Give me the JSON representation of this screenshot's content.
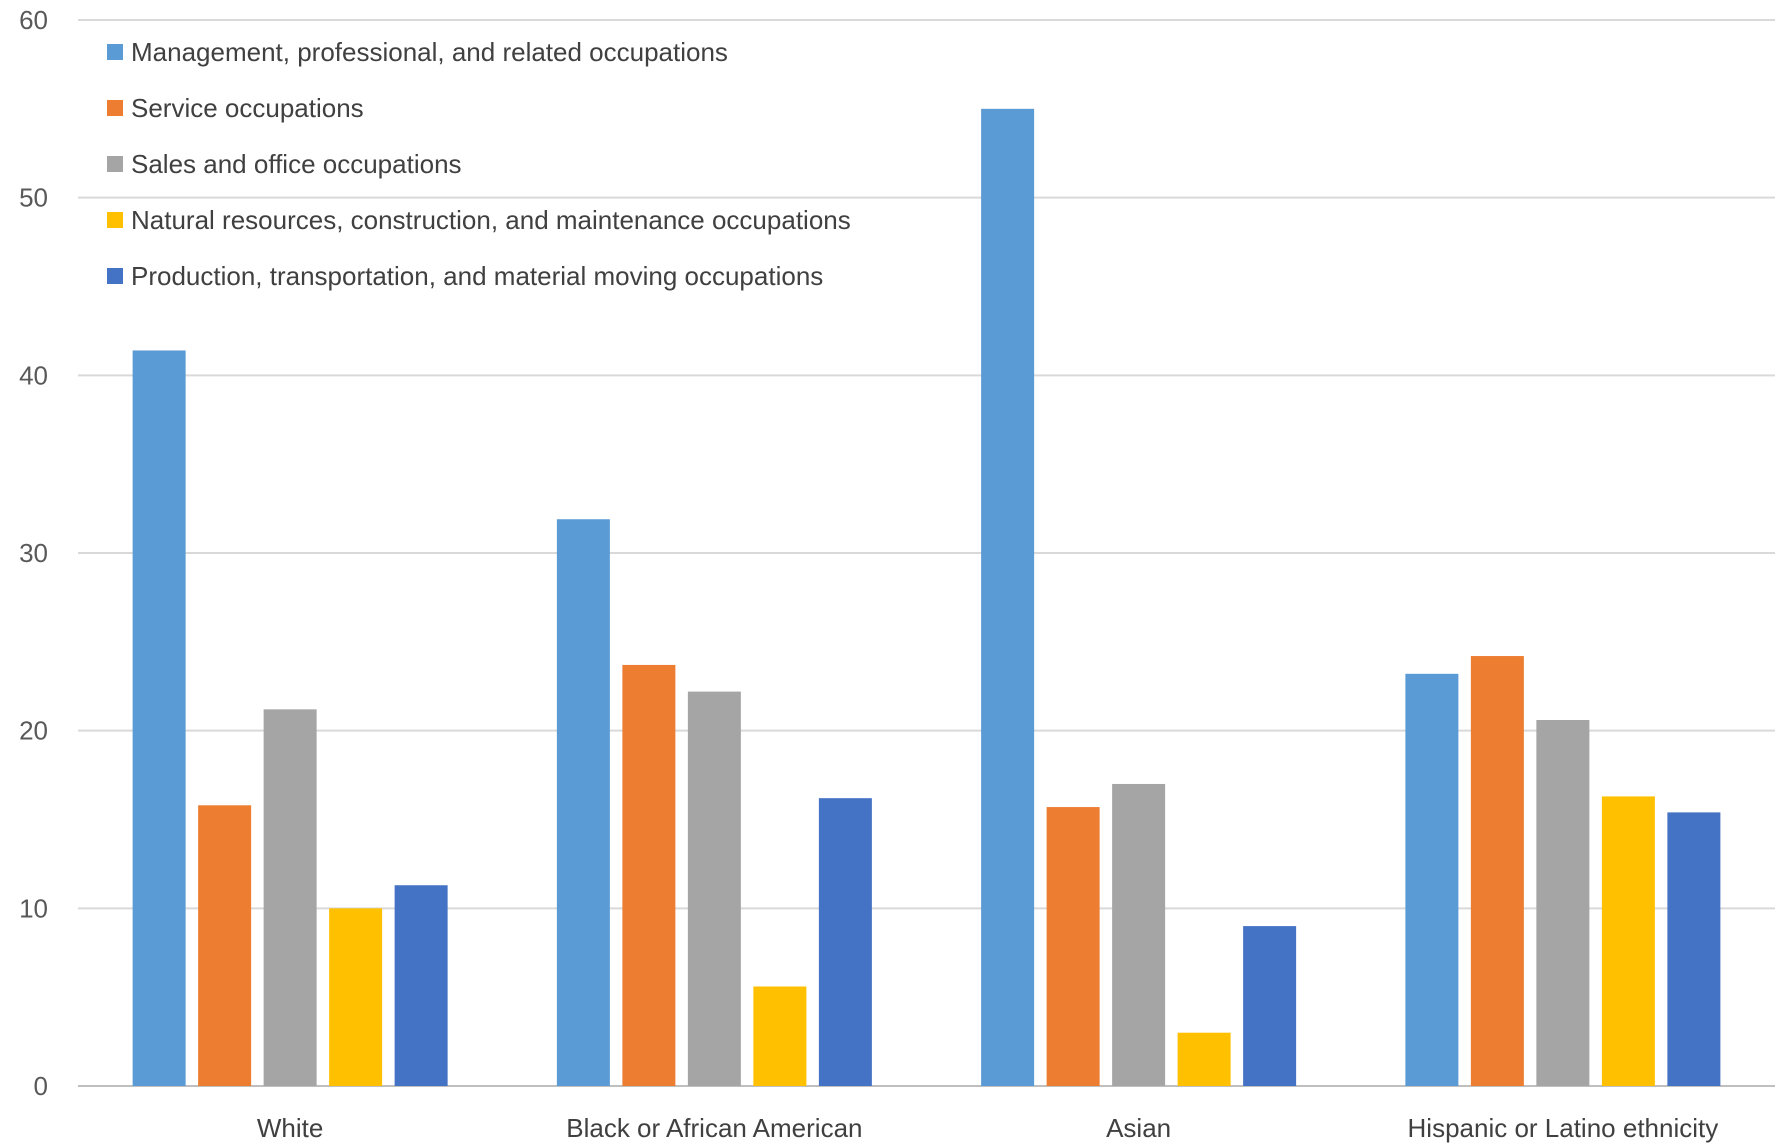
{
  "chart_data": {
    "type": "bar",
    "categories": [
      "White",
      "Black or African American",
      "Asian",
      "Hispanic or Latino ethnicity"
    ],
    "series": [
      {
        "name": "Management, professional, and related occupations",
        "color": "#5B9BD5",
        "values": [
          41.4,
          31.9,
          55.0,
          23.2
        ]
      },
      {
        "name": "Service occupations",
        "color": "#ED7D31",
        "values": [
          15.8,
          23.7,
          15.7,
          24.2
        ]
      },
      {
        "name": "Sales and office occupations",
        "color": "#A5A5A5",
        "values": [
          21.2,
          22.2,
          17.0,
          20.6
        ]
      },
      {
        "name": "Natural resources, construction, and maintenance occupations",
        "color": "#FFC000",
        "values": [
          10.0,
          5.6,
          3.0,
          16.3
        ]
      },
      {
        "name": "Production, transportation, and material moving occupations",
        "color": "#4472C4",
        "values": [
          11.3,
          16.2,
          9.0,
          15.4
        ]
      }
    ],
    "ylim": [
      0,
      60
    ],
    "yticks": [
      "0",
      "10",
      "20",
      "30",
      "40",
      "50",
      "60"
    ],
    "grid": true,
    "legend_position": "top-left"
  }
}
